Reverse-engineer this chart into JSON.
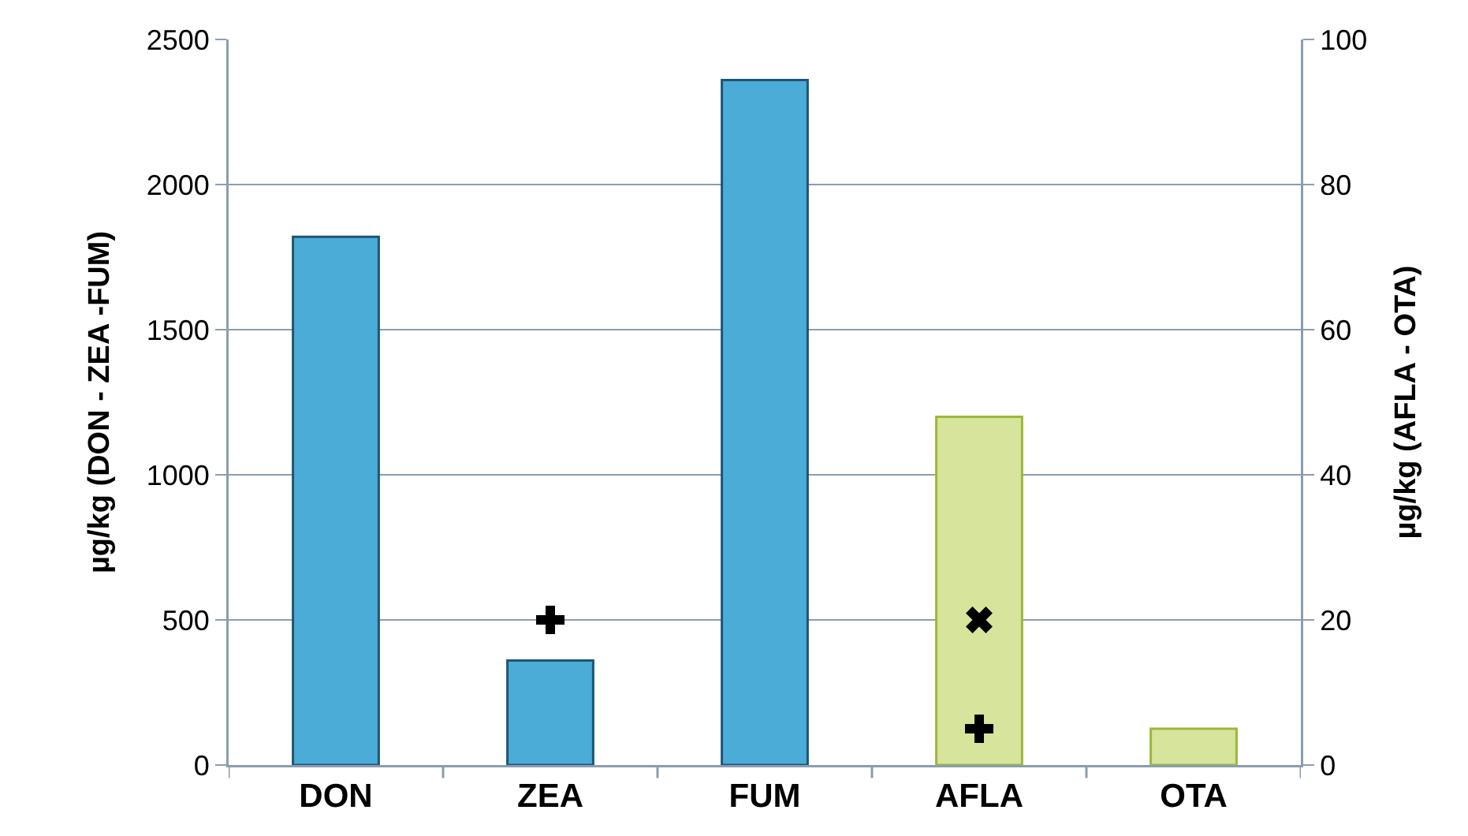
{
  "chart_data": {
    "type": "bar",
    "categories": [
      "DON",
      "ZEA",
      "FUM",
      "AFLA",
      "OTA"
    ],
    "ylabel": "µg/kg (DON - ZEA -FUM)",
    "y2label": "µg/kg (AFLA - OTA)",
    "series": [
      {
        "color": "#4bacd8",
        "values": [
          1820,
          360,
          2360,
          null,
          null
        ]
      },
      {
        "color": "#d7e49c",
        "axis": "y2",
        "values": [
          null,
          null,
          null,
          48,
          5
        ]
      },
      {
        "type": "scatter",
        "color": "#000000",
        "marker": "cross",
        "x": [
          "ZEA"
        ],
        "values": [
          500
        ]
      },
      {
        "type": "scatter",
        "color": "#000000",
        "marker": "x",
        "axis": "y2",
        "x": [
          "AFLA"
        ],
        "values": [
          20
        ]
      },
      {
        "type": "scatter",
        "color": "#000000",
        "marker": "cross",
        "axis": "y2",
        "x": [
          "AFLA"
        ],
        "values": [
          5
        ]
      }
    ],
    "ylim": [
      0,
      2500
    ],
    "yticks": [
      0,
      500,
      1000,
      1500,
      2000,
      2500
    ],
    "y2lim": [
      0,
      100
    ],
    "y2ticks": [
      0,
      20,
      40,
      60,
      80,
      100
    ],
    "grid": "y",
    "legend": false
  }
}
